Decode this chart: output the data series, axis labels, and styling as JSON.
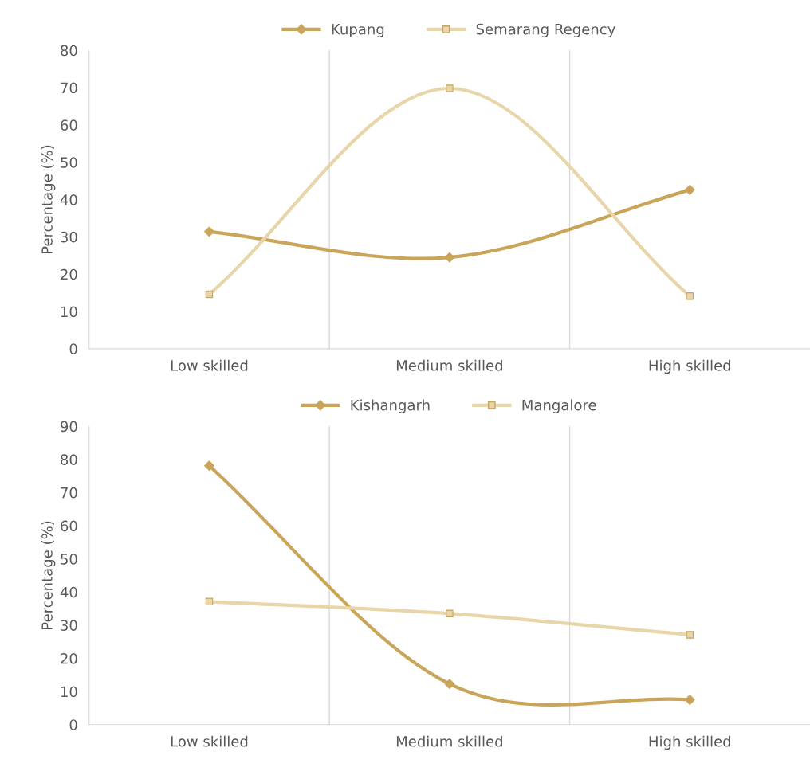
{
  "chart_data": [
    {
      "type": "line",
      "categories": [
        "Low skilled",
        "Medium skilled",
        "High skilled"
      ],
      "ylabel": "Percentage (%)",
      "ylim": [
        0,
        80
      ],
      "yticks": [
        0,
        10,
        20,
        30,
        40,
        50,
        60,
        70,
        80
      ],
      "grid": "x",
      "legend": "top",
      "line_style": "solid",
      "series": [
        {
          "name": "Kupang",
          "color": "#c9a55a",
          "marker": "diamond",
          "values": [
            31.4,
            24.5,
            42.6
          ]
        },
        {
          "name": "Semarang Regency",
          "color": "#e8d6aa",
          "marker": "square",
          "values": [
            14.6,
            69.8,
            14.1
          ]
        }
      ]
    },
    {
      "type": "line",
      "categories": [
        "Low skilled",
        "Medium skilled",
        "High skilled"
      ],
      "ylabel": "Percentage (%)",
      "ylim": [
        0,
        90
      ],
      "yticks": [
        0,
        10,
        20,
        30,
        40,
        50,
        60,
        70,
        80,
        90
      ],
      "grid": "x",
      "legend": "top",
      "line_style": "solid",
      "series": [
        {
          "name": "Kishangarh",
          "color": "#c9a55a",
          "marker": "diamond",
          "values": [
            78.1,
            12.3,
            7.5
          ]
        },
        {
          "name": "Mangalore",
          "color": "#e8d6aa",
          "marker": "square",
          "values": [
            37.1,
            33.5,
            27.1
          ]
        }
      ]
    }
  ]
}
